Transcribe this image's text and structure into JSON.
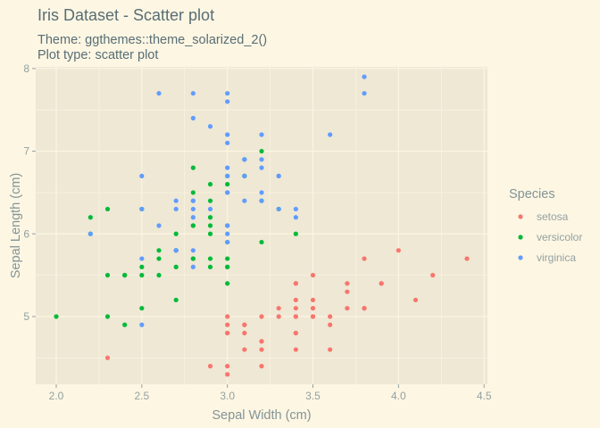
{
  "chart_data": {
    "type": "scatter",
    "title": "Iris Dataset - Scatter plot",
    "subtitle_lines": [
      "Theme: ggthemes::theme_solarized_2()",
      "Plot type: scatter plot"
    ],
    "xlabel": "Sepal Width (cm)",
    "ylabel": "Sepal Length (cm)",
    "xlim": [
      1.88,
      4.52
    ],
    "ylim": [
      4.18,
      8.02
    ],
    "x_ticks": [
      2.0,
      2.5,
      3.0,
      3.5,
      4.0,
      4.5
    ],
    "x_tick_labels": [
      "2.0",
      "2.5",
      "3.0",
      "3.5",
      "4.0",
      "4.5"
    ],
    "y_ticks": [
      5,
      6,
      7,
      8
    ],
    "y_tick_labels": [
      "5",
      "6",
      "7",
      "8"
    ],
    "grid": true,
    "legend": {
      "title": "Species",
      "position": "right"
    },
    "series": [
      {
        "name": "setosa",
        "color": "#f8766d",
        "points": [
          [
            3.5,
            5.1
          ],
          [
            3.0,
            4.9
          ],
          [
            3.2,
            4.7
          ],
          [
            3.1,
            4.6
          ],
          [
            3.6,
            5.0
          ],
          [
            3.9,
            5.4
          ],
          [
            3.4,
            4.6
          ],
          [
            3.4,
            5.0
          ],
          [
            2.9,
            4.4
          ],
          [
            3.1,
            4.9
          ],
          [
            3.7,
            5.4
          ],
          [
            3.4,
            4.8
          ],
          [
            3.0,
            4.8
          ],
          [
            3.0,
            4.3
          ],
          [
            4.0,
            5.8
          ],
          [
            4.4,
            5.7
          ],
          [
            3.9,
            5.4
          ],
          [
            3.5,
            5.1
          ],
          [
            3.8,
            5.7
          ],
          [
            3.8,
            5.1
          ],
          [
            3.4,
            5.4
          ],
          [
            3.7,
            5.1
          ],
          [
            3.6,
            4.6
          ],
          [
            3.3,
            5.1
          ],
          [
            3.4,
            4.8
          ],
          [
            3.0,
            5.0
          ],
          [
            3.4,
            5.0
          ],
          [
            3.5,
            5.2
          ],
          [
            3.4,
            5.2
          ],
          [
            3.2,
            4.7
          ],
          [
            3.1,
            4.8
          ],
          [
            3.4,
            5.4
          ],
          [
            4.1,
            5.2
          ],
          [
            4.2,
            5.5
          ],
          [
            3.1,
            4.9
          ],
          [
            3.2,
            5.0
          ],
          [
            3.5,
            5.5
          ],
          [
            3.6,
            4.9
          ],
          [
            3.0,
            4.4
          ],
          [
            3.4,
            5.1
          ],
          [
            3.5,
            5.0
          ],
          [
            2.3,
            4.5
          ],
          [
            3.2,
            4.4
          ],
          [
            3.5,
            5.0
          ],
          [
            3.8,
            5.1
          ],
          [
            3.0,
            4.8
          ],
          [
            3.8,
            5.1
          ],
          [
            3.2,
            4.6
          ],
          [
            3.7,
            5.3
          ],
          [
            3.3,
            5.0
          ]
        ]
      },
      {
        "name": "versicolor",
        "color": "#00ba38",
        "points": [
          [
            3.2,
            7.0
          ],
          [
            3.2,
            6.4
          ],
          [
            3.1,
            6.9
          ],
          [
            2.3,
            5.5
          ],
          [
            2.8,
            6.5
          ],
          [
            2.8,
            5.7
          ],
          [
            3.3,
            6.3
          ],
          [
            2.4,
            4.9
          ],
          [
            2.9,
            6.6
          ],
          [
            2.7,
            5.2
          ],
          [
            2.0,
            5.0
          ],
          [
            3.0,
            5.9
          ],
          [
            2.2,
            6.0
          ],
          [
            2.9,
            6.1
          ],
          [
            2.9,
            5.6
          ],
          [
            3.1,
            6.7
          ],
          [
            3.0,
            5.6
          ],
          [
            2.7,
            5.8
          ],
          [
            2.2,
            6.2
          ],
          [
            2.5,
            5.6
          ],
          [
            3.2,
            5.9
          ],
          [
            2.8,
            6.1
          ],
          [
            2.5,
            6.3
          ],
          [
            2.8,
            6.1
          ],
          [
            2.9,
            6.4
          ],
          [
            3.0,
            6.6
          ],
          [
            2.8,
            6.8
          ],
          [
            3.0,
            6.7
          ],
          [
            2.9,
            6.0
          ],
          [
            2.6,
            5.7
          ],
          [
            2.4,
            5.5
          ],
          [
            2.4,
            5.5
          ],
          [
            2.7,
            5.8
          ],
          [
            2.7,
            6.0
          ],
          [
            3.0,
            5.4
          ],
          [
            3.4,
            6.0
          ],
          [
            3.1,
            6.7
          ],
          [
            2.3,
            6.3
          ],
          [
            3.0,
            5.6
          ],
          [
            2.5,
            5.5
          ],
          [
            2.6,
            5.5
          ],
          [
            3.0,
            6.1
          ],
          [
            2.6,
            5.8
          ],
          [
            2.3,
            5.0
          ],
          [
            2.7,
            5.6
          ],
          [
            3.0,
            5.7
          ],
          [
            2.9,
            5.7
          ],
          [
            2.9,
            6.2
          ],
          [
            2.5,
            5.1
          ],
          [
            2.8,
            5.7
          ]
        ]
      },
      {
        "name": "virginica",
        "color": "#619cff",
        "points": [
          [
            3.3,
            6.3
          ],
          [
            2.7,
            5.8
          ],
          [
            3.0,
            7.1
          ],
          [
            2.9,
            6.3
          ],
          [
            3.0,
            6.5
          ],
          [
            3.0,
            7.6
          ],
          [
            2.5,
            4.9
          ],
          [
            2.9,
            7.3
          ],
          [
            2.5,
            6.7
          ],
          [
            3.6,
            7.2
          ],
          [
            3.2,
            6.5
          ],
          [
            2.7,
            6.4
          ],
          [
            3.0,
            6.8
          ],
          [
            2.5,
            5.7
          ],
          [
            2.8,
            5.8
          ],
          [
            3.2,
            6.4
          ],
          [
            3.0,
            6.5
          ],
          [
            3.8,
            7.7
          ],
          [
            2.6,
            7.7
          ],
          [
            2.2,
            6.0
          ],
          [
            3.2,
            6.9
          ],
          [
            2.8,
            5.6
          ],
          [
            2.8,
            7.7
          ],
          [
            2.7,
            6.3
          ],
          [
            3.3,
            6.7
          ],
          [
            3.2,
            7.2
          ],
          [
            2.8,
            6.2
          ],
          [
            3.0,
            6.1
          ],
          [
            2.8,
            6.4
          ],
          [
            3.0,
            7.2
          ],
          [
            2.8,
            7.4
          ],
          [
            3.8,
            7.9
          ],
          [
            2.8,
            6.4
          ],
          [
            2.8,
            6.3
          ],
          [
            2.6,
            6.1
          ],
          [
            3.0,
            7.7
          ],
          [
            3.4,
            6.3
          ],
          [
            3.1,
            6.4
          ],
          [
            3.0,
            6.0
          ],
          [
            3.1,
            6.9
          ],
          [
            3.1,
            6.7
          ],
          [
            3.1,
            6.9
          ],
          [
            2.7,
            5.8
          ],
          [
            3.2,
            6.8
          ],
          [
            3.3,
            6.7
          ],
          [
            3.0,
            6.7
          ],
          [
            2.5,
            6.3
          ],
          [
            3.0,
            6.5
          ],
          [
            3.4,
            6.2
          ],
          [
            3.0,
            5.9
          ]
        ]
      }
    ]
  }
}
